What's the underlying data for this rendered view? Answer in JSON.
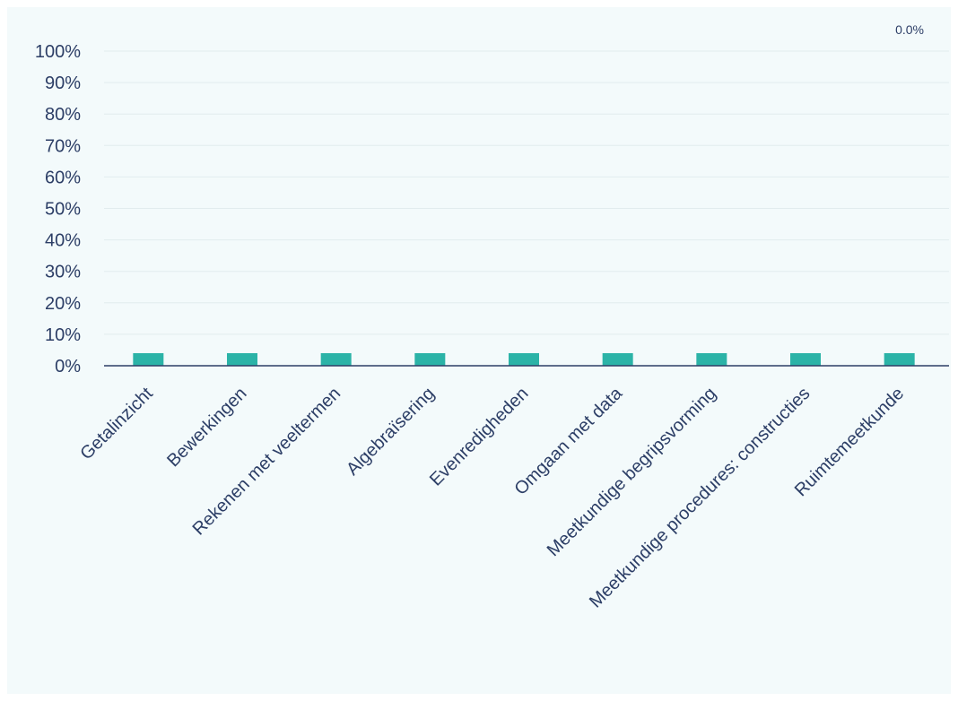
{
  "chart_data": {
    "type": "bar",
    "title": "",
    "xlabel": "",
    "ylabel": "",
    "ylim": [
      0,
      100
    ],
    "y_ticks": [
      "0%",
      "10%",
      "20%",
      "30%",
      "40%",
      "50%",
      "60%",
      "70%",
      "80%",
      "90%",
      "100%"
    ],
    "categories": [
      "Getalinzicht",
      "Bewerkingen",
      "Rekenen met veeltermen",
      "Algebraïsering",
      "Evenredigheden",
      "Omgaan met data",
      "Meetkundige begripsvorming",
      "Meetkundige procedures: constructies",
      "Ruimtemeetkunde"
    ],
    "values": [
      4,
      4,
      4,
      4,
      4,
      4,
      4,
      4,
      4
    ],
    "grid": true,
    "legend": "none",
    "corner_label": "0.0%",
    "bar_color": "#2bb3a7",
    "axis_color": "#2c3e66"
  }
}
